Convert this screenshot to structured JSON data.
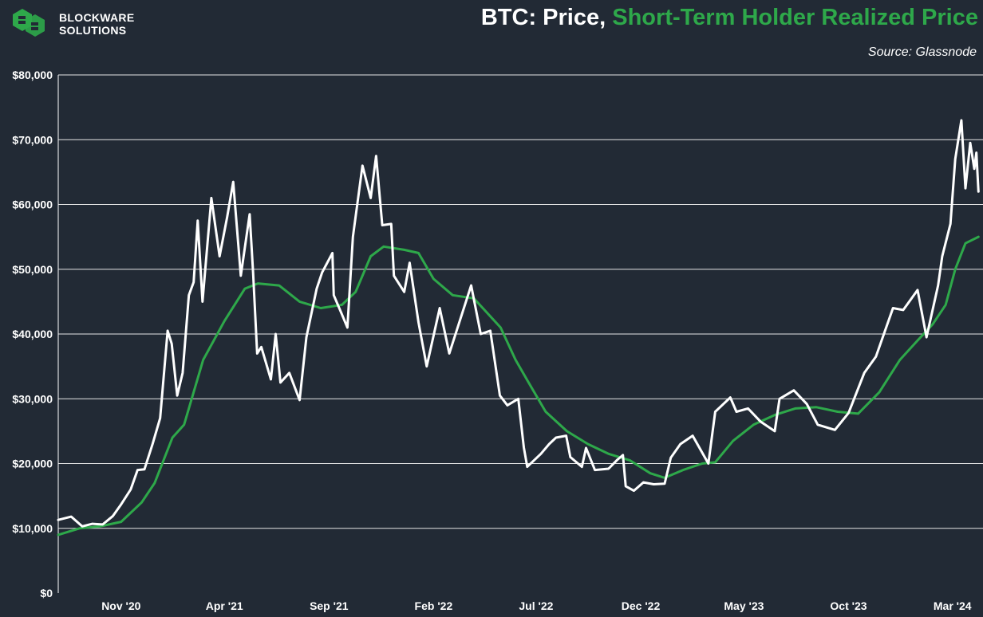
{
  "brand": {
    "line1": "BLOCKWARE",
    "line2": "SOLUTIONS",
    "logo_icon": "blockware-logo-icon",
    "color": "#2ea84a"
  },
  "header": {
    "title_part1": "BTC: Price,",
    "title_part2": "Short-Term Holder Realized Price",
    "source": "Source: Glassnode"
  },
  "chart_data": {
    "type": "line",
    "title": "BTC: Price, Short-Term Holder Realized Price",
    "xlabel": "",
    "ylabel": "",
    "x_range": [
      "2020-08-01",
      "2024-04-10"
    ],
    "ylim": [
      0,
      80000
    ],
    "y_ticks": [
      0,
      10000,
      20000,
      30000,
      40000,
      50000,
      60000,
      70000,
      80000
    ],
    "y_tick_labels": [
      "$0",
      "$10,000",
      "$20,000",
      "$30,000",
      "$40,000",
      "$50,000",
      "$60,000",
      "$70,000",
      "$80,000"
    ],
    "x_ticks": [
      "2020-11-01",
      "2021-04-01",
      "2021-09-01",
      "2022-02-01",
      "2022-07-01",
      "2022-12-01",
      "2023-05-01",
      "2023-10-01",
      "2024-03-01"
    ],
    "x_tick_labels": [
      "Nov '20",
      "Apr '21",
      "Sep '21",
      "Feb '22",
      "Jul '22",
      "Dec '22",
      "May '23",
      "Oct '23",
      "Mar '24"
    ],
    "grid": "horizontal",
    "legend": "none",
    "series": [
      {
        "name": "Price",
        "color": "#ffffff",
        "points": [
          [
            "2020-08-01",
            11300
          ],
          [
            "2020-08-20",
            11800
          ],
          [
            "2020-09-05",
            10300
          ],
          [
            "2020-09-20",
            10700
          ],
          [
            "2020-10-05",
            10600
          ],
          [
            "2020-10-20",
            11900
          ],
          [
            "2020-11-01",
            13700
          ],
          [
            "2020-11-15",
            16000
          ],
          [
            "2020-11-25",
            19000
          ],
          [
            "2020-12-05",
            19100
          ],
          [
            "2020-12-17",
            23000
          ],
          [
            "2020-12-28",
            27000
          ],
          [
            "2021-01-08",
            40500
          ],
          [
            "2021-01-14",
            38500
          ],
          [
            "2021-01-22",
            30500
          ],
          [
            "2021-01-30",
            34000
          ],
          [
            "2021-02-08",
            46000
          ],
          [
            "2021-02-15",
            48000
          ],
          [
            "2021-02-21",
            57500
          ],
          [
            "2021-02-28",
            45000
          ],
          [
            "2021-03-13",
            61000
          ],
          [
            "2021-03-25",
            52000
          ],
          [
            "2021-04-05",
            58000
          ],
          [
            "2021-04-14",
            63500
          ],
          [
            "2021-04-25",
            49000
          ],
          [
            "2021-05-08",
            58500
          ],
          [
            "2021-05-13",
            49500
          ],
          [
            "2021-05-19",
            37000
          ],
          [
            "2021-05-25",
            38000
          ],
          [
            "2021-06-08",
            33000
          ],
          [
            "2021-06-15",
            40000
          ],
          [
            "2021-06-22",
            32500
          ],
          [
            "2021-07-05",
            34000
          ],
          [
            "2021-07-20",
            29800
          ],
          [
            "2021-07-30",
            39500
          ],
          [
            "2021-08-14",
            47000
          ],
          [
            "2021-08-22",
            49500
          ],
          [
            "2021-09-06",
            52500
          ],
          [
            "2021-09-08",
            46000
          ],
          [
            "2021-09-20",
            43000
          ],
          [
            "2021-09-28",
            41000
          ],
          [
            "2021-10-06",
            55000
          ],
          [
            "2021-10-20",
            66000
          ],
          [
            "2021-11-01",
            61000
          ],
          [
            "2021-11-09",
            67500
          ],
          [
            "2021-11-18",
            56800
          ],
          [
            "2021-12-01",
            57000
          ],
          [
            "2021-12-05",
            49000
          ],
          [
            "2021-12-20",
            46500
          ],
          [
            "2021-12-28",
            51000
          ],
          [
            "2022-01-10",
            41800
          ],
          [
            "2022-01-22",
            35000
          ],
          [
            "2022-02-10",
            44000
          ],
          [
            "2022-02-24",
            37000
          ],
          [
            "2022-03-28",
            47500
          ],
          [
            "2022-04-11",
            40000
          ],
          [
            "2022-04-25",
            40500
          ],
          [
            "2022-05-09",
            30500
          ],
          [
            "2022-05-20",
            29000
          ],
          [
            "2022-06-05",
            30000
          ],
          [
            "2022-06-13",
            22500
          ],
          [
            "2022-06-18",
            19500
          ],
          [
            "2022-07-08",
            21500
          ],
          [
            "2022-07-20",
            23000
          ],
          [
            "2022-07-30",
            24000
          ],
          [
            "2022-08-14",
            24300
          ],
          [
            "2022-08-20",
            21000
          ],
          [
            "2022-09-06",
            19500
          ],
          [
            "2022-09-12",
            22400
          ],
          [
            "2022-09-25",
            19000
          ],
          [
            "2022-10-15",
            19200
          ],
          [
            "2022-10-28",
            20600
          ],
          [
            "2022-11-05",
            21300
          ],
          [
            "2022-11-09",
            16500
          ],
          [
            "2022-11-21",
            15800
          ],
          [
            "2022-12-05",
            17100
          ],
          [
            "2022-12-20",
            16800
          ],
          [
            "2023-01-05",
            16900
          ],
          [
            "2023-01-14",
            20900
          ],
          [
            "2023-01-28",
            23000
          ],
          [
            "2023-02-15",
            24300
          ],
          [
            "2023-03-10",
            20000
          ],
          [
            "2023-03-20",
            28000
          ],
          [
            "2023-04-11",
            30200
          ],
          [
            "2023-04-20",
            28000
          ],
          [
            "2023-05-07",
            28500
          ],
          [
            "2023-05-25",
            26500
          ],
          [
            "2023-06-15",
            25000
          ],
          [
            "2023-06-22",
            30000
          ],
          [
            "2023-07-13",
            31300
          ],
          [
            "2023-08-01",
            29200
          ],
          [
            "2023-08-17",
            26000
          ],
          [
            "2023-09-11",
            25200
          ],
          [
            "2023-10-01",
            27800
          ],
          [
            "2023-10-24",
            34000
          ],
          [
            "2023-11-10",
            36500
          ],
          [
            "2023-12-05",
            44000
          ],
          [
            "2023-12-20",
            43700
          ],
          [
            "2024-01-10",
            46800
          ],
          [
            "2024-01-23",
            39500
          ],
          [
            "2024-02-09",
            47500
          ],
          [
            "2024-02-15",
            52000
          ],
          [
            "2024-02-27",
            57000
          ],
          [
            "2024-03-05",
            67000
          ],
          [
            "2024-03-14",
            73000
          ],
          [
            "2024-03-20",
            62500
          ],
          [
            "2024-03-27",
            69500
          ],
          [
            "2024-04-02",
            65500
          ],
          [
            "2024-04-05",
            68000
          ],
          [
            "2024-04-08",
            62000
          ]
        ]
      },
      {
        "name": "Short-Term Holder Realized Price",
        "color": "#2ea84a",
        "points": [
          [
            "2020-08-01",
            9000
          ],
          [
            "2020-09-01",
            10000
          ],
          [
            "2020-10-01",
            10300
          ],
          [
            "2020-11-01",
            11000
          ],
          [
            "2020-12-01",
            14000
          ],
          [
            "2020-12-20",
            17000
          ],
          [
            "2021-01-15",
            24000
          ],
          [
            "2021-02-01",
            26000
          ],
          [
            "2021-03-01",
            36000
          ],
          [
            "2021-04-01",
            42000
          ],
          [
            "2021-05-01",
            47000
          ],
          [
            "2021-05-20",
            47800
          ],
          [
            "2021-06-20",
            47500
          ],
          [
            "2021-07-20",
            45000
          ],
          [
            "2021-08-20",
            44000
          ],
          [
            "2021-09-20",
            44500
          ],
          [
            "2021-10-10",
            46500
          ],
          [
            "2021-11-01",
            52000
          ],
          [
            "2021-11-20",
            53500
          ],
          [
            "2021-12-20",
            53000
          ],
          [
            "2022-01-10",
            52500
          ],
          [
            "2022-02-01",
            48500
          ],
          [
            "2022-03-01",
            46000
          ],
          [
            "2022-04-01",
            45500
          ],
          [
            "2022-05-10",
            41000
          ],
          [
            "2022-06-01",
            36000
          ],
          [
            "2022-06-20",
            32500
          ],
          [
            "2022-07-15",
            28000
          ],
          [
            "2022-08-15",
            25000
          ],
          [
            "2022-09-15",
            23000
          ],
          [
            "2022-10-15",
            21500
          ],
          [
            "2022-11-15",
            20500
          ],
          [
            "2022-12-15",
            18500
          ],
          [
            "2023-01-05",
            17800
          ],
          [
            "2023-02-01",
            19000
          ],
          [
            "2023-03-01",
            20000
          ],
          [
            "2023-03-20",
            20200
          ],
          [
            "2023-04-15",
            23500
          ],
          [
            "2023-05-15",
            26000
          ],
          [
            "2023-06-15",
            27500
          ],
          [
            "2023-07-15",
            28500
          ],
          [
            "2023-08-15",
            28700
          ],
          [
            "2023-09-15",
            28000
          ],
          [
            "2023-10-15",
            27700
          ],
          [
            "2023-11-15",
            31000
          ],
          [
            "2023-12-15",
            36000
          ],
          [
            "2024-01-10",
            39000
          ],
          [
            "2024-02-01",
            41500
          ],
          [
            "2024-02-20",
            44500
          ],
          [
            "2024-03-05",
            50000
          ],
          [
            "2024-03-20",
            54000
          ],
          [
            "2024-04-08",
            55000
          ]
        ]
      }
    ]
  }
}
